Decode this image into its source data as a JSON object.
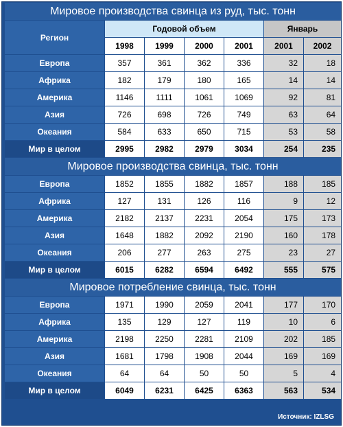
{
  "header": {
    "region_label": "Регион",
    "annual_label": "Годовой объем",
    "january_label": "Январь",
    "years": [
      "1998",
      "1999",
      "2000",
      "2001"
    ],
    "jan_years": [
      "2001",
      "2002"
    ]
  },
  "sections": [
    {
      "title": "Мировое производства свинца из руд, тыс. тонн",
      "rows": [
        {
          "region": "Европа",
          "values": [
            "357",
            "361",
            "362",
            "336"
          ],
          "jan": [
            "32",
            "18"
          ]
        },
        {
          "region": "Африка",
          "values": [
            "182",
            "179",
            "180",
            "165"
          ],
          "jan": [
            "14",
            "14"
          ]
        },
        {
          "region": "Америка",
          "values": [
            "1146",
            "1111",
            "1061",
            "1069"
          ],
          "jan": [
            "92",
            "81"
          ]
        },
        {
          "region": "Азия",
          "values": [
            "726",
            "698",
            "726",
            "749"
          ],
          "jan": [
            "63",
            "64"
          ]
        },
        {
          "region": "Океания",
          "values": [
            "584",
            "633",
            "650",
            "715"
          ],
          "jan": [
            "53",
            "58"
          ]
        },
        {
          "region": "Мир в целом",
          "values": [
            "2995",
            "2982",
            "2979",
            "3034"
          ],
          "jan": [
            "254",
            "235"
          ]
        }
      ]
    },
    {
      "title": "Мировое производства свинца, тыс. тонн",
      "rows": [
        {
          "region": "Европа",
          "values": [
            "1852",
            "1855",
            "1882",
            "1857"
          ],
          "jan": [
            "188",
            "185"
          ]
        },
        {
          "region": "Африка",
          "values": [
            "127",
            "131",
            "126",
            "116"
          ],
          "jan": [
            "9",
            "12"
          ]
        },
        {
          "region": "Америка",
          "values": [
            "2182",
            "2137",
            "2231",
            "2054"
          ],
          "jan": [
            "175",
            "173"
          ]
        },
        {
          "region": "Азия",
          "values": [
            "1648",
            "1882",
            "2092",
            "2190"
          ],
          "jan": [
            "160",
            "178"
          ]
        },
        {
          "region": "Океания",
          "values": [
            "206",
            "277",
            "263",
            "275"
          ],
          "jan": [
            "23",
            "27"
          ]
        },
        {
          "region": "Мир в целом",
          "values": [
            "6015",
            "6282",
            "6594",
            "6492"
          ],
          "jan": [
            "555",
            "575"
          ]
        }
      ]
    },
    {
      "title": "Мировое потребление свинца, тыс. тонн",
      "rows": [
        {
          "region": "Европа",
          "values": [
            "1971",
            "1990",
            "2059",
            "2041"
          ],
          "jan": [
            "177",
            "170"
          ]
        },
        {
          "region": "Африка",
          "values": [
            "135",
            "129",
            "127",
            "119"
          ],
          "jan": [
            "10",
            "6"
          ]
        },
        {
          "region": "Америка",
          "values": [
            "2198",
            "2250",
            "2281",
            "2109"
          ],
          "jan": [
            "202",
            "185"
          ]
        },
        {
          "region": "Азия",
          "values": [
            "1681",
            "1798",
            "1908",
            "2044"
          ],
          "jan": [
            "169",
            "169"
          ]
        },
        {
          "region": "Океания",
          "values": [
            "64",
            "64",
            "50",
            "50"
          ],
          "jan": [
            "5",
            "4"
          ]
        },
        {
          "region": "Мир в целом",
          "values": [
            "6049",
            "6231",
            "6425",
            "6363"
          ],
          "jan": [
            "563",
            "534"
          ]
        }
      ]
    }
  ],
  "footer": {
    "source": "Источник: IZLSG"
  }
}
